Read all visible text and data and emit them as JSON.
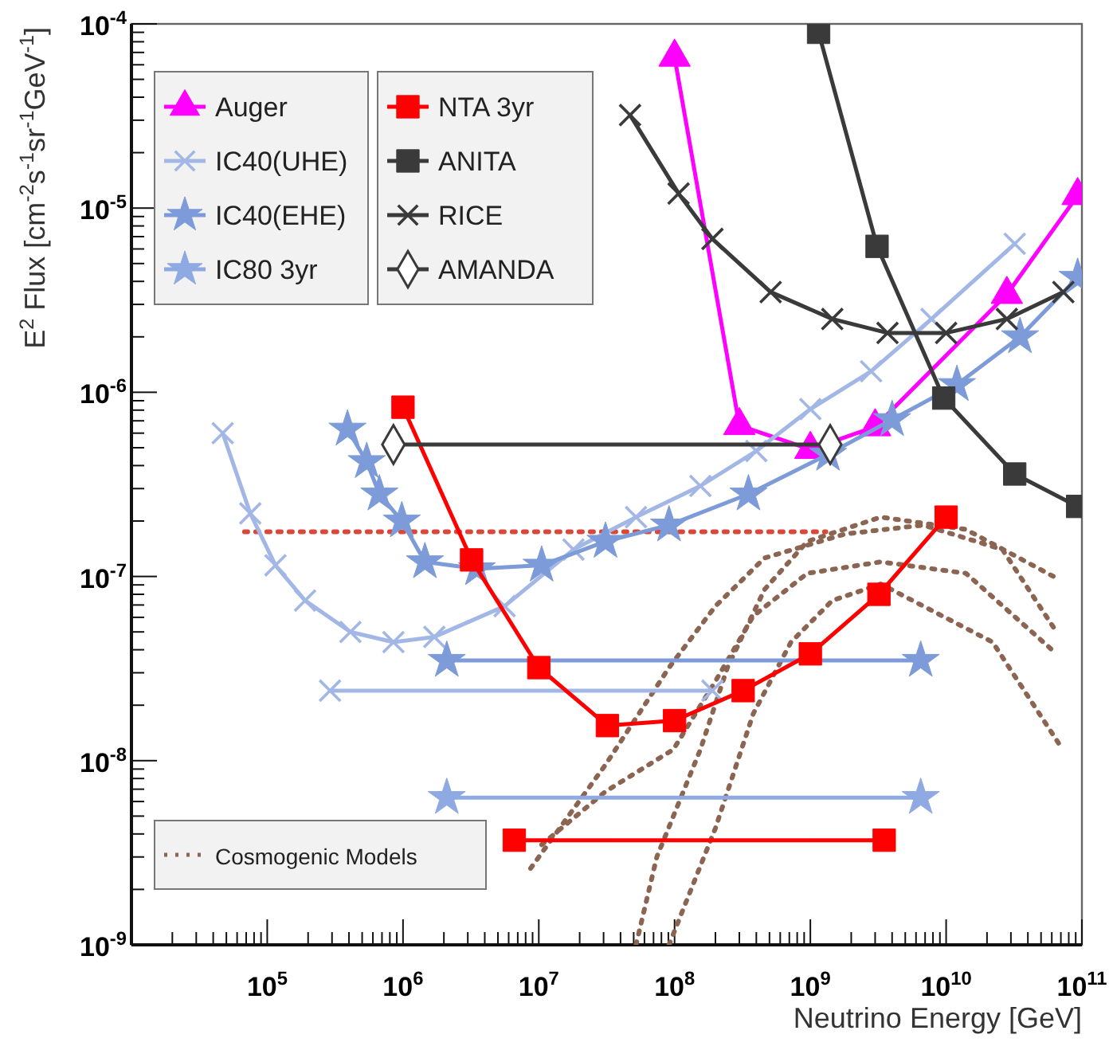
{
  "chart_data": {
    "type": "line",
    "xlabel": "Neutrino Energy [GeV]",
    "ylabel": "E$^{2}$ Flux [cm$^{-2}$s$^{-1}$sr$^{-1}$GeV$^{-1}$]",
    "log": "xy",
    "grid": false,
    "legend": "top left",
    "xlim": [
      10000.0,
      100000000000.0
    ],
    "ylim": [
      1e-09,
      0.0001
    ],
    "xticks": [
      {
        "value": 10000.0,
        "label": null
      },
      {
        "value": 20000.0,
        "label": null
      },
      {
        "value": 30000.0,
        "label": null
      },
      {
        "value": 40000.0,
        "label": null
      },
      {
        "value": 50000.0,
        "label": null
      },
      {
        "value": 60000.0,
        "label": null
      },
      {
        "value": 70000.0,
        "label": null
      },
      {
        "value": 80000.0,
        "label": null
      },
      {
        "value": 90000.0,
        "label": null
      },
      {
        "value": 100000.0,
        "label": "10$^{5}$"
      },
      {
        "value": 200000.0,
        "label": null
      },
      {
        "value": 300000.0,
        "label": null
      },
      {
        "value": 400000.0,
        "label": null
      },
      {
        "value": 500000.0,
        "label": null
      },
      {
        "value": 600000.0,
        "label": null
      },
      {
        "value": 700000.0,
        "label": null
      },
      {
        "value": 800000.0,
        "label": null
      },
      {
        "value": 900000.0,
        "label": null
      },
      {
        "value": 1000000.0,
        "label": "10$^{6}$"
      },
      {
        "value": 2000000.0,
        "label": null
      },
      {
        "value": 3000000.0,
        "label": null
      },
      {
        "value": 4000000.0,
        "label": null
      },
      {
        "value": 5000000.0,
        "label": null
      },
      {
        "value": 6000000.0,
        "label": null
      },
      {
        "value": 7000000.0,
        "label": null
      },
      {
        "value": 8000000.0,
        "label": null
      },
      {
        "value": 9000000.0,
        "label": null
      },
      {
        "value": 10000000.0,
        "label": "10$^{7}$"
      },
      {
        "value": 20000000.0,
        "label": null
      },
      {
        "value": 30000000.0,
        "label": null
      },
      {
        "value": 40000000.0,
        "label": null
      },
      {
        "value": 50000000.0,
        "label": null
      },
      {
        "value": 60000000.0,
        "label": null
      },
      {
        "value": 70000000.0,
        "label": null
      },
      {
        "value": 80000000.0,
        "label": null
      },
      {
        "value": 90000000.0,
        "label": null
      },
      {
        "value": 100000000.0,
        "label": "10$^{8}$"
      },
      {
        "value": 200000000.0,
        "label": null
      },
      {
        "value": 300000000.0,
        "label": null
      },
      {
        "value": 400000000.0,
        "label": null
      },
      {
        "value": 500000000.0,
        "label": null
      },
      {
        "value": 600000000.0,
        "label": null
      },
      {
        "value": 700000000.0,
        "label": null
      },
      {
        "value": 800000000.0,
        "label": null
      },
      {
        "value": 900000000.0,
        "label": null
      },
      {
        "value": 1000000000.0,
        "label": "10$^{9}$"
      },
      {
        "value": 2000000000.0,
        "label": null
      },
      {
        "value": 3000000000.0,
        "label": null
      },
      {
        "value": 4000000000.0,
        "label": null
      },
      {
        "value": 5000000000.0,
        "label": null
      },
      {
        "value": 6000000000.0,
        "label": null
      },
      {
        "value": 7000000000.0,
        "label": null
      },
      {
        "value": 8000000000.0,
        "label": null
      },
      {
        "value": 9000000000.0,
        "label": null
      },
      {
        "value": 10000000000.0,
        "label": "10$^{10}$"
      },
      {
        "value": 20000000000.0,
        "label": null
      },
      {
        "value": 30000000000.0,
        "label": null
      },
      {
        "value": 40000000000.0,
        "label": null
      },
      {
        "value": 50000000000.0,
        "label": null
      },
      {
        "value": 60000000000.0,
        "label": null
      },
      {
        "value": 70000000000.0,
        "label": null
      },
      {
        "value": 80000000000.0,
        "label": null
      },
      {
        "value": 90000000000.0,
        "label": null
      },
      {
        "value": 100000000000.0,
        "label": "10$^{11}$"
      }
    ],
    "yticks": [
      {
        "value": 1e-09,
        "label": "10$^{-9}$"
      },
      {
        "value": 2e-09,
        "label": null
      },
      {
        "value": 3e-09,
        "label": null
      },
      {
        "value": 4e-09,
        "label": null
      },
      {
        "value": 5e-09,
        "label": null
      },
      {
        "value": 6e-09,
        "label": null
      },
      {
        "value": 7e-09,
        "label": null
      },
      {
        "value": 8e-09,
        "label": null
      },
      {
        "value": 9e-09,
        "label": null
      },
      {
        "value": 1e-08,
        "label": "10$^{-8}$"
      },
      {
        "value": 2e-08,
        "label": null
      },
      {
        "value": 3e-08,
        "label": null
      },
      {
        "value": 4e-08,
        "label": null
      },
      {
        "value": 5e-08,
        "label": null
      },
      {
        "value": 6e-08,
        "label": null
      },
      {
        "value": 7e-08,
        "label": null
      },
      {
        "value": 8e-08,
        "label": null
      },
      {
        "value": 9e-08,
        "label": null
      },
      {
        "value": 1e-07,
        "label": "10$^{-7}$"
      },
      {
        "value": 2e-07,
        "label": null
      },
      {
        "value": 3e-07,
        "label": null
      },
      {
        "value": 4e-07,
        "label": null
      },
      {
        "value": 5e-07,
        "label": null
      },
      {
        "value": 6e-07,
        "label": null
      },
      {
        "value": 7e-07,
        "label": null
      },
      {
        "value": 8e-07,
        "label": null
      },
      {
        "value": 9e-07,
        "label": null
      },
      {
        "value": 1e-06,
        "label": "10$^{-6}$"
      },
      {
        "value": 2e-06,
        "label": null
      },
      {
        "value": 3e-06,
        "label": null
      },
      {
        "value": 4e-06,
        "label": null
      },
      {
        "value": 5e-06,
        "label": null
      },
      {
        "value": 6e-06,
        "label": null
      },
      {
        "value": 7e-06,
        "label": null
      },
      {
        "value": 8e-06,
        "label": null
      },
      {
        "value": 9e-06,
        "label": null
      },
      {
        "value": 1e-05,
        "label": "10$^{-5}$"
      },
      {
        "value": 2e-05,
        "label": null
      },
      {
        "value": 3e-05,
        "label": null
      },
      {
        "value": 4e-05,
        "label": null
      },
      {
        "value": 5e-05,
        "label": null
      },
      {
        "value": 6e-05,
        "label": null
      },
      {
        "value": 7e-05,
        "label": null
      },
      {
        "value": 8e-05,
        "label": null
      },
      {
        "value": 9e-05,
        "label": null
      },
      {
        "value": 0.0001,
        "label": "10$^{-4}$"
      }
    ],
    "series": [
      {
        "name": "Cosmogenic Models",
        "color": "#8b6552",
        "line_style": "dotted",
        "marker": "none",
        "x": [
          10500000.0,
          31000000.0,
          98000000.0,
          200000000.0,
          380000000.0,
          950000000.0,
          3300000000.0,
          14000000000.0,
          65000000000.0
        ],
        "values": [
          3.5e-09,
          6.8e-09,
          1.15e-08,
          2.7e-08,
          6.1e-08,
          1.04e-07,
          1.2e-07,
          1.04e-07,
          3.8e-08
        ]
      },
      {
        "color": "#8b6552",
        "line_style": "dotted",
        "marker": "none",
        "x": [
          52000000.0,
          74000000.0,
          155000000.0,
          245000000.0,
          460000000.0,
          950000000.0,
          3300000000.0,
          14000000000.0,
          65000000000.0
        ],
        "values": [
          1e-09,
          3e-09,
          1.15e-08,
          3.2e-08,
          8.5e-08,
          1.55e-07,
          2.1e-07,
          1.8e-07,
          9.8e-08
        ]
      },
      {
        "color": "#8b6552",
        "line_style": "dotted",
        "marker": "none",
        "x": [
          91000000.0,
          200000000.0,
          380000000.0,
          720000000.0,
          1450000000.0,
          3300000000.0,
          22000000000.0,
          68000000000.0
        ],
        "values": [
          1e-09,
          4.3e-09,
          1.8e-08,
          4.4e-08,
          7.4e-08,
          9.1e-08,
          4.4e-08,
          1.23e-08
        ]
      },
      {
        "color": "#8b6552",
        "line_style": "dotted",
        "marker": "none",
        "x": [
          8700000.0,
          31000000.0,
          91000000.0,
          200000000.0,
          460000000.0,
          1800000000.0,
          6800000000.0,
          26000000000.0,
          65000000000.0
        ],
        "values": [
          2.6e-09,
          9.5e-09,
          3.2e-08,
          6.9e-08,
          1.26e-07,
          1.7e-07,
          1.9e-07,
          1.4e-07,
          5e-08
        ]
      },
      {
        "color": "#d9483b",
        "line_style": "dotted",
        "marker": "none",
        "x": [
          68000.0,
          1300000000.0
        ],
        "values": [
          1.75e-07,
          1.75e-07
        ]
      },
      {
        "name": "Auger",
        "color": "#ff00ff",
        "line_style": "solid",
        "marker": "triangle",
        "x": [
          100000000.0,
          300000000.0,
          1000000000.0,
          3000000000.0,
          28000000000.0,
          93000000000.0
        ],
        "values": [
          6.6e-05,
          6.6e-07,
          4.9e-07,
          6.5e-07,
          3.4e-06,
          1.17e-05
        ]
      },
      {
        "name": "IC40(UHE)",
        "color": "#a3b7e6",
        "line_style": "solid",
        "marker": "cross",
        "x": [
          47000.0,
          75000.0,
          115000.0,
          190000.0,
          410000.0,
          850000.0,
          1700000.0,
          5600000.0,
          18000000.0,
          52000000.0,
          155000000.0,
          400000000.0,
          1000000000.0,
          2800000000.0,
          7800000000.0,
          32000000000.0
        ],
        "values": [
          6e-07,
          2.2e-07,
          1.15e-07,
          7.4e-08,
          5e-08,
          4.4e-08,
          4.7e-08,
          6.9e-08,
          1.4e-07,
          2.1e-07,
          3.1e-07,
          4.8e-07,
          8.1e-07,
          1.3e-06,
          2.5e-06,
          6.4e-06
        ]
      },
      {
        "name": "IC40(EHE)",
        "color": "#7c9bd8",
        "line_style": "solid",
        "marker": "star",
        "x": [
          390000.0,
          540000.0,
          670000.0,
          980000.0,
          1450000.0,
          3500000.0,
          10500000.0,
          31000000.0,
          91000000.0,
          350000000.0,
          1350000000.0,
          4000000000.0,
          12000000000.0,
          35000000000.0,
          93000000000.0
        ],
        "values": [
          6.3e-07,
          4.2e-07,
          2.8e-07,
          2e-07,
          1.2e-07,
          1.1e-07,
          1.15e-07,
          1.55e-07,
          1.9e-07,
          2.8e-07,
          4.6e-07,
          7.1e-07,
          1.1e-06,
          2e-06,
          4.2e-06
        ]
      },
      {
        "name": "IC80 3yr",
        "color": "#8fa9e2",
        "line_style": "solid",
        "marker": "star",
        "x": [
          2100000.0,
          6500000000.0
        ],
        "values": [
          6.3e-09,
          6.3e-09
        ]
      },
      {
        "color": "#a3b7e6",
        "line_style": "solid",
        "marker": "cross",
        "x": [
          290000.0,
          190000000.0
        ],
        "values": [
          2.4e-08,
          2.4e-08
        ]
      },
      {
        "color": "#7c9bd8",
        "line_style": "solid",
        "marker": "star",
        "x": [
          2100000.0,
          6500000000.0
        ],
        "values": [
          3.5e-08,
          3.5e-08
        ]
      },
      {
        "name": "NTA 3yr",
        "color": "#ff0000",
        "line_style": "solid",
        "marker": "square",
        "x": [
          1000000.0,
          3200000.0,
          10000000.0,
          32000000.0,
          100000000.0,
          320000000.0,
          1000000000.0,
          3200000000.0,
          10000000000.0
        ],
        "values": [
          8.3e-07,
          1.23e-07,
          3.2e-08,
          1.55e-08,
          1.65e-08,
          2.4e-08,
          3.8e-08,
          8e-08,
          2.1e-07
        ]
      },
      {
        "color": "#ff0000",
        "line_style": "solid",
        "marker": "square",
        "x": [
          6600000.0,
          3500000000.0
        ],
        "values": [
          3.7e-09,
          3.7e-09
        ]
      },
      {
        "name": "ANITA",
        "color": "#3a3a3a",
        "line_style": "solid",
        "marker": "square",
        "x": [
          1150000000.0,
          3100000000.0,
          9600000000.0,
          32000000000.0,
          93000000000.0
        ],
        "values": [
          9e-05,
          6.2e-06,
          9.3e-07,
          3.6e-07,
          2.4e-07
        ]
      },
      {
        "name": "RICE",
        "color": "#3a3a3a",
        "line_style": "solid",
        "marker": "cross",
        "x": [
          47000000.0,
          107000000.0,
          190000000.0,
          510000000.0,
          1450000000.0,
          3700000000.0,
          10000000000.0,
          28000000000.0,
          73000000000.0
        ],
        "values": [
          3.2e-05,
          1.2e-05,
          6.8e-06,
          3.5e-06,
          2.5e-06,
          2.1e-06,
          2.1e-06,
          2.5e-06,
          3.5e-06
        ]
      },
      {
        "name": "AMANDA",
        "color": "#3a3a3a",
        "line_style": "solid",
        "marker": "diamond",
        "x": [
          850000.0,
          1400000000.0
        ],
        "values": [
          5.2e-07,
          5.2e-07
        ]
      }
    ]
  }
}
